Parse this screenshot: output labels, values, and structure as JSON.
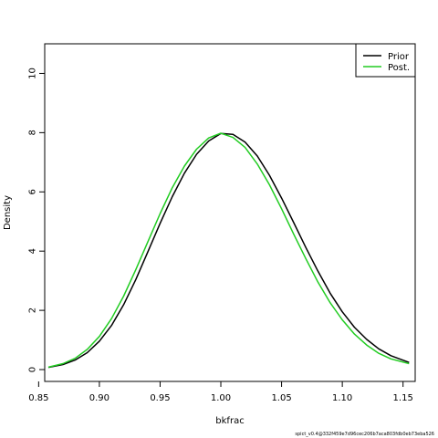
{
  "chart_data": {
    "type": "line",
    "xlabel": "bkfrac",
    "ylabel": "Density",
    "xlim": [
      0.855,
      1.16
    ],
    "ylim": [
      -0.4,
      11.0
    ],
    "x_ticks": [
      0.85,
      0.9,
      0.95,
      1.0,
      1.05,
      1.1,
      1.15
    ],
    "x_tick_labels": [
      "0.85",
      "0.90",
      "0.95",
      "1.00",
      "1.05",
      "1.10",
      "1.15"
    ],
    "y_ticks": [
      0,
      2,
      4,
      6,
      8,
      10
    ],
    "y_tick_labels": [
      "0",
      "2",
      "4",
      "6",
      "8",
      "10"
    ],
    "grid": false,
    "legend_position": "top-right",
    "series": [
      {
        "name": "Prior",
        "color": "#000000",
        "x": [
          0.858,
          0.87,
          0.88,
          0.89,
          0.9,
          0.91,
          0.92,
          0.93,
          0.94,
          0.95,
          0.96,
          0.97,
          0.98,
          0.99,
          1.0,
          1.01,
          1.02,
          1.03,
          1.04,
          1.05,
          1.06,
          1.07,
          1.08,
          1.09,
          1.1,
          1.11,
          1.12,
          1.13,
          1.14,
          1.155
        ],
        "y": [
          0.07,
          0.17,
          0.32,
          0.57,
          0.96,
          1.49,
          2.19,
          3.04,
          3.98,
          4.94,
          5.84,
          6.63,
          7.27,
          7.72,
          7.97,
          7.94,
          7.68,
          7.21,
          6.56,
          5.79,
          4.96,
          4.12,
          3.32,
          2.58,
          1.95,
          1.43,
          1.02,
          0.7,
          0.47,
          0.24
        ]
      },
      {
        "name": "Post.",
        "color": "#22cc22",
        "x": [
          0.858,
          0.87,
          0.88,
          0.89,
          0.9,
          0.91,
          0.92,
          0.93,
          0.94,
          0.95,
          0.96,
          0.97,
          0.98,
          0.99,
          1.0,
          1.01,
          1.02,
          1.03,
          1.04,
          1.05,
          1.06,
          1.07,
          1.08,
          1.09,
          1.1,
          1.11,
          1.12,
          1.13,
          1.14,
          1.155
        ],
        "y": [
          0.08,
          0.2,
          0.38,
          0.68,
          1.12,
          1.72,
          2.48,
          3.37,
          4.32,
          5.27,
          6.14,
          6.87,
          7.44,
          7.82,
          7.98,
          7.84,
          7.5,
          6.94,
          6.24,
          5.43,
          4.57,
          3.74,
          2.95,
          2.26,
          1.68,
          1.2,
          0.83,
          0.55,
          0.36,
          0.2
        ]
      }
    ]
  },
  "footer": "spict_v0.4@332f459e7d96cec206b7aca803fdb0eb73eba526"
}
